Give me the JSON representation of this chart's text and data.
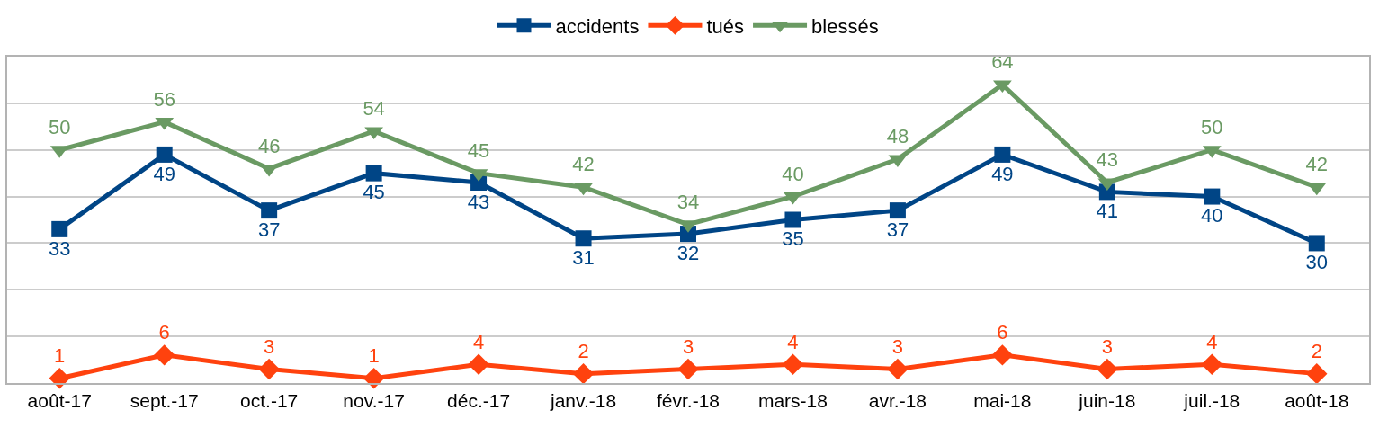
{
  "chart_data": {
    "type": "line",
    "categories": [
      "août-17",
      "sept.-17",
      "oct.-17",
      "nov.-17",
      "déc.-17",
      "janv.-18",
      "févr.-18",
      "mars-18",
      "avr.-18",
      "mai-18",
      "juin-18",
      "juil.-18",
      "août-18"
    ],
    "series": [
      {
        "name": "accidents",
        "color": "#004586",
        "marker": "square",
        "values": [
          33,
          49,
          37,
          45,
          43,
          31,
          32,
          35,
          37,
          49,
          41,
          40,
          30
        ]
      },
      {
        "name": "tués",
        "color": "#ff420e",
        "marker": "diamond",
        "values": [
          1,
          6,
          3,
          1,
          4,
          2,
          3,
          4,
          3,
          6,
          3,
          4,
          2
        ]
      },
      {
        "name": "blessés",
        "color": "#6a9a63",
        "marker": "triangle",
        "values": [
          50,
          56,
          46,
          54,
          45,
          42,
          34,
          40,
          48,
          64,
          43,
          50,
          42
        ]
      }
    ],
    "ylim": [
      0,
      70
    ],
    "yticks": [
      {
        "value": 0,
        "label": null
      },
      {
        "value": 10,
        "label": null
      },
      {
        "value": 20,
        "label": null
      },
      {
        "value": 30,
        "label": null
      },
      {
        "value": 40,
        "label": null
      },
      {
        "value": 50,
        "label": null
      },
      {
        "value": 60,
        "label": null
      },
      {
        "value": 70,
        "label": null
      }
    ],
    "tick_labels": "x",
    "grid": "y",
    "legend": "top",
    "data_labels": true,
    "line_style": "solid"
  }
}
